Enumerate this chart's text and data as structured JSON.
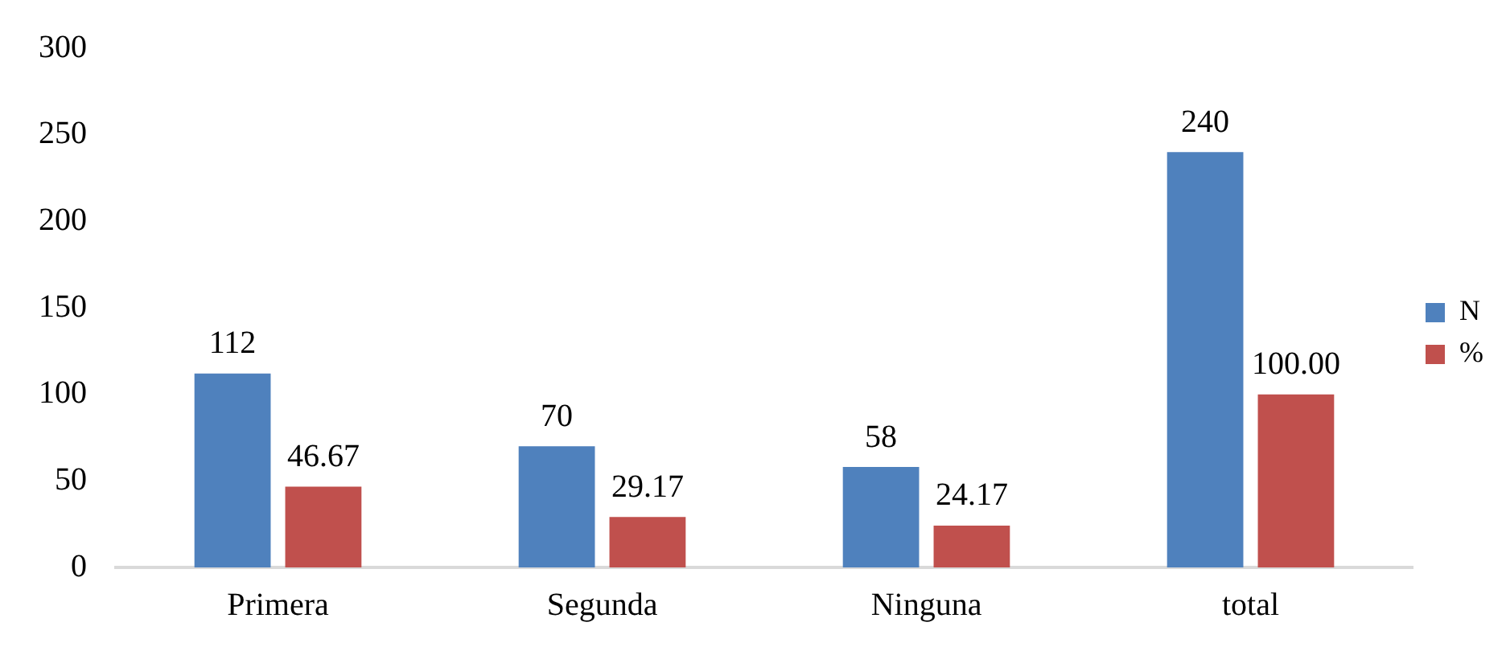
{
  "chart_data": {
    "type": "bar",
    "categories": [
      "Primera",
      "Segunda",
      "Ninguna",
      "total"
    ],
    "series": [
      {
        "name": "N",
        "color": "#4f81bd",
        "values": [
          112,
          70,
          58,
          240
        ],
        "value_labels": [
          "112",
          "70",
          "58",
          "240"
        ]
      },
      {
        "name": "%",
        "color": "#c0504d",
        "values": [
          46.67,
          29.17,
          24.17,
          100
        ],
        "value_labels": [
          "46.67",
          "29.17",
          "24.17",
          "100.00"
        ]
      }
    ],
    "ylim": [
      0,
      300
    ],
    "yticks": [
      0,
      50,
      100,
      150,
      200,
      250,
      300
    ],
    "legend": "right",
    "grid": false
  }
}
